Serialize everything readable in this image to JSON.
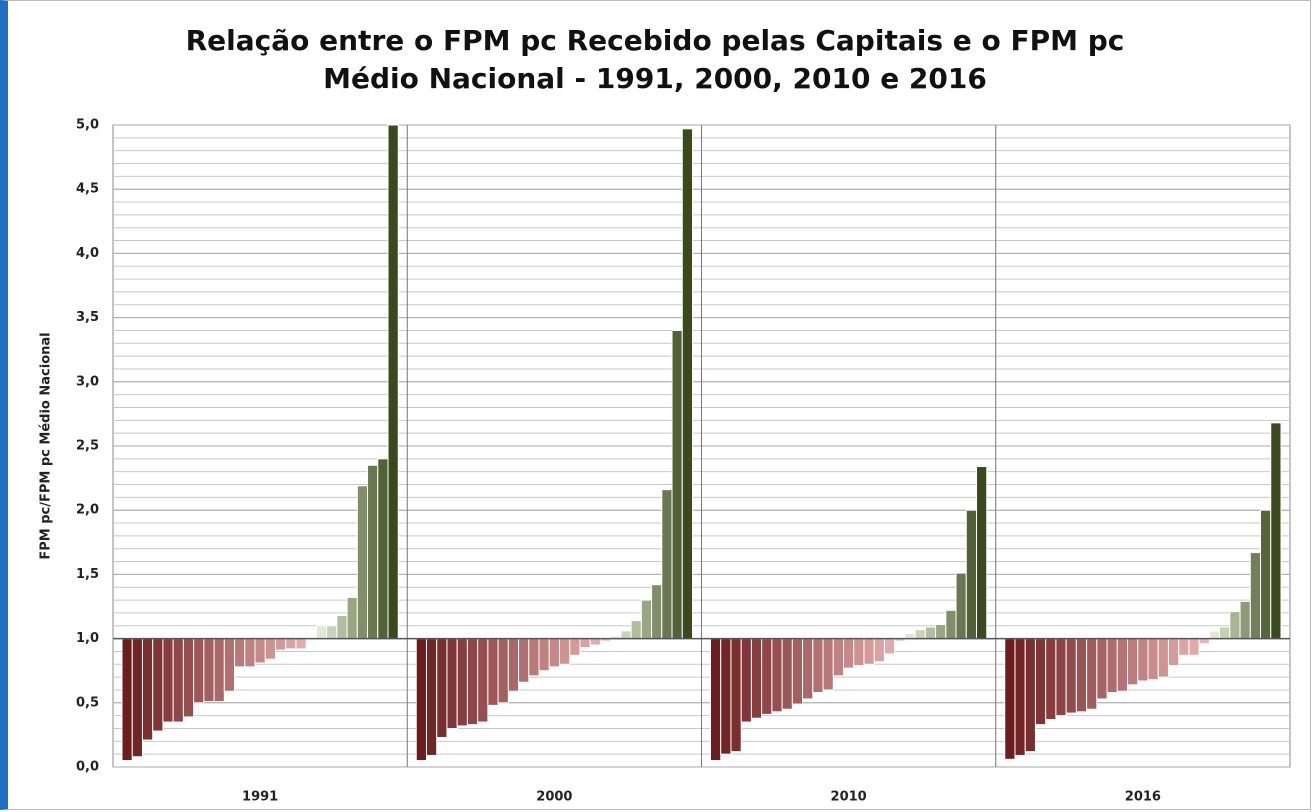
{
  "chart_data": {
    "type": "bar",
    "title": "Relação entre o FPM pc Recebido pelas Capitais e o FPM pc Médio Nacional - 1991, 2000, 2010 e 2016",
    "ylabel": "FPM pc/FPM pc Médio Nacional",
    "ylim": [
      0,
      5
    ],
    "yticks": [
      {
        "value": 0,
        "label": "0,0"
      },
      {
        "value": 0.5,
        "label": "0,5"
      },
      {
        "value": 1,
        "label": "1,0"
      },
      {
        "value": 1.5,
        "label": "1,5"
      },
      {
        "value": 2,
        "label": "2,0"
      },
      {
        "value": 2.5,
        "label": "2,5"
      },
      {
        "value": 3,
        "label": "3,0"
      },
      {
        "value": 3.5,
        "label": "3,5"
      },
      {
        "value": 4,
        "label": "4,0"
      },
      {
        "value": 4.5,
        "label": "4,5"
      },
      {
        "value": 5,
        "label": "5,0"
      }
    ],
    "grid": true,
    "grid_step": 0.1,
    "baseline": 1,
    "bar_colors": {
      "below": [
        "#6b1d1f",
        "#e9b3b3"
      ],
      "above": [
        "#e2e9d2",
        "#3a4a1c"
      ]
    },
    "series": [
      {
        "name": "1991",
        "values": [
          0.05,
          0.08,
          0.21,
          0.28,
          0.35,
          0.35,
          0.39,
          0.5,
          0.51,
          0.51,
          0.59,
          0.78,
          0.78,
          0.81,
          0.84,
          0.91,
          0.92,
          0.92,
          0.99,
          1.1,
          1.1,
          1.18,
          1.32,
          2.19,
          2.35,
          2.4,
          5.0
        ]
      },
      {
        "name": "2000",
        "values": [
          0.05,
          0.09,
          0.23,
          0.3,
          0.32,
          0.33,
          0.35,
          0.48,
          0.5,
          0.59,
          0.66,
          0.71,
          0.75,
          0.78,
          0.8,
          0.87,
          0.93,
          0.95,
          0.98,
          1.02,
          1.06,
          1.14,
          1.3,
          1.42,
          2.16,
          3.4,
          4.97
        ]
      },
      {
        "name": "2010",
        "values": [
          0.05,
          0.1,
          0.12,
          0.35,
          0.38,
          0.41,
          0.43,
          0.45,
          0.49,
          0.53,
          0.58,
          0.6,
          0.71,
          0.77,
          0.79,
          0.8,
          0.82,
          0.88,
          0.98,
          1.04,
          1.07,
          1.09,
          1.11,
          1.22,
          1.51,
          2.0,
          2.34
        ]
      },
      {
        "name": "2016",
        "values": [
          0.06,
          0.09,
          0.12,
          0.33,
          0.37,
          0.4,
          0.42,
          0.43,
          0.45,
          0.53,
          0.58,
          0.59,
          0.64,
          0.67,
          0.68,
          0.7,
          0.79,
          0.87,
          0.87,
          0.96,
          1.06,
          1.09,
          1.21,
          1.29,
          1.67,
          2.0,
          2.68
        ]
      }
    ]
  }
}
